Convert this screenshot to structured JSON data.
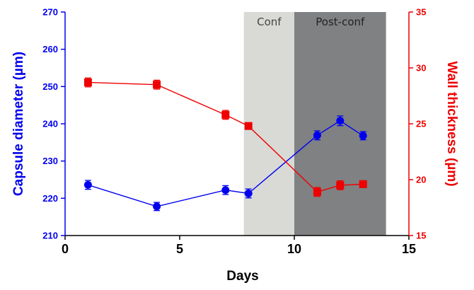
{
  "chart_data": {
    "type": "line",
    "x": [
      1,
      4,
      7,
      8,
      11,
      12,
      13
    ],
    "xlabel": "Days",
    "xlim": [
      0,
      15
    ],
    "xticks": [
      0,
      5,
      10,
      15
    ],
    "grid": false,
    "legend": "none",
    "regions": [
      {
        "label": "Conf",
        "x_range": [
          7.8,
          10
        ],
        "color": "#d9dad6",
        "text_color": "#444444"
      },
      {
        "label": "Post-conf",
        "x_range": [
          10,
          14
        ],
        "color": "#7f8183",
        "text_color": "#222222"
      }
    ],
    "y_axes": {
      "left": {
        "label": "Capsule diameter (µm)",
        "lim": [
          210,
          270
        ],
        "ticks": [
          210,
          220,
          230,
          240,
          250,
          260,
          270
        ],
        "color": "#0000ee"
      },
      "right": {
        "label": "Wall thickness (µm)",
        "lim": [
          15,
          35
        ],
        "ticks": [
          15,
          20,
          25,
          30,
          35
        ],
        "color": "#ee0000"
      }
    },
    "series": [
      {
        "axis": "left",
        "marker": "circle",
        "color": "#0000ee",
        "x": [
          1,
          4,
          7,
          8,
          11,
          12,
          13
        ],
        "values": [
          223.6,
          217.8,
          222.2,
          221.3,
          236.9,
          240.8,
          236.8
        ],
        "error": [
          1.2,
          1.1,
          1.2,
          1.2,
          1.2,
          1.3,
          1.1
        ]
      },
      {
        "axis": "right",
        "marker": "square",
        "color": "#ee0000",
        "x": [
          1,
          4,
          7,
          8,
          11,
          12,
          13
        ],
        "values": [
          28.7,
          28.5,
          25.8,
          24.8,
          18.9,
          19.5,
          19.6
        ],
        "error": [
          0.4,
          0.4,
          0.4,
          0.3,
          0.4,
          0.4,
          0.3
        ]
      }
    ]
  }
}
